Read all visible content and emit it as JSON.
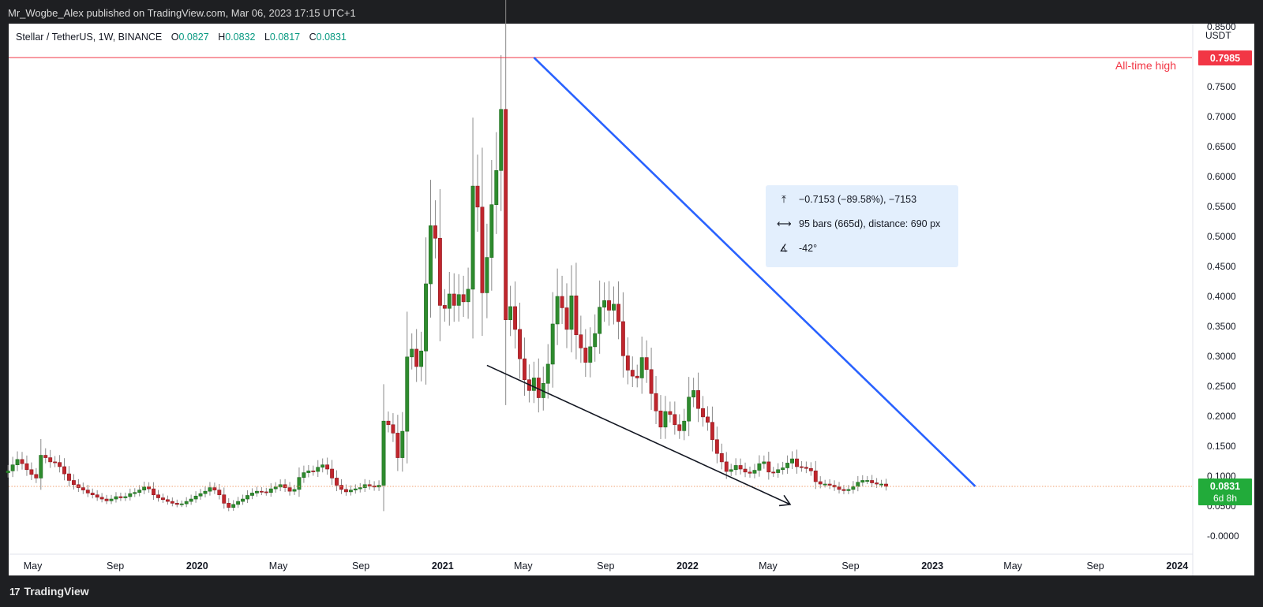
{
  "header": {
    "published_by": "Mr_Wogbe_Alex published on TradingView.com, Mar 06, 2023 17:15 UTC+1"
  },
  "footer": {
    "brand": "TradingView",
    "logo_icon": "tradingview-logo-icon"
  },
  "legend": {
    "symbol": "Stellar / TetherUS, 1W, BINANCE",
    "open_label": "O",
    "open": "0.0827",
    "high_label": "H",
    "high": "0.0832",
    "low_label": "L",
    "low": "0.0817",
    "close_label": "C",
    "close": "0.0831"
  },
  "price_axis": {
    "currency": "USDT",
    "last_price": "0.0831",
    "countdown": "6d 8h",
    "ath_value": "0.7985"
  },
  "annotations": {
    "ath_text": "All-time high",
    "measure_price": "−0.7153 (−89.58%), −7153",
    "measure_bars": "95 bars (665d), distance: 690 px",
    "measure_angle": "-42°"
  },
  "colors": {
    "up": "#2e8b2e",
    "down": "#c0262d",
    "ath_line": "#f23645",
    "trend_line": "#2962ff",
    "arrow": "#131722",
    "last_price_bg": "#22ab3a",
    "measure_bg": "#e3effd"
  },
  "chart_data": {
    "type": "candlestick",
    "title": "Stellar / TetherUS, 1W, BINANCE",
    "ylabel": "USDT",
    "ylim": [
      -0.03,
      0.855
    ],
    "y_ticks": [
      "0.8500",
      "0.7500",
      "0.7000",
      "0.6500",
      "0.6000",
      "0.5500",
      "0.5000",
      "0.4500",
      "0.4000",
      "0.3500",
      "0.3000",
      "0.2500",
      "0.2000",
      "0.1500",
      "0.1000",
      "0.0500",
      "-0.0000"
    ],
    "y_tick_values": [
      0.85,
      0.75,
      0.7,
      0.65,
      0.6,
      0.55,
      0.5,
      0.45,
      0.4,
      0.35,
      0.3,
      0.25,
      0.2,
      0.15,
      0.1,
      0.05,
      0.0
    ],
    "x_ticks": [
      {
        "label": "May",
        "date": "2019-05-01",
        "bold": false
      },
      {
        "label": "Sep",
        "date": "2019-09-01",
        "bold": false
      },
      {
        "label": "2020",
        "date": "2020-01-01",
        "bold": true
      },
      {
        "label": "May",
        "date": "2020-05-01",
        "bold": false
      },
      {
        "label": "Sep",
        "date": "2020-09-01",
        "bold": false
      },
      {
        "label": "2021",
        "date": "2021-01-01",
        "bold": true
      },
      {
        "label": "May",
        "date": "2021-05-01",
        "bold": false
      },
      {
        "label": "Sep",
        "date": "2021-09-01",
        "bold": false
      },
      {
        "label": "2022",
        "date": "2022-01-01",
        "bold": true
      },
      {
        "label": "May",
        "date": "2022-05-01",
        "bold": false
      },
      {
        "label": "Sep",
        "date": "2022-09-01",
        "bold": false
      },
      {
        "label": "2023",
        "date": "2023-01-01",
        "bold": true
      },
      {
        "label": "May",
        "date": "2023-05-01",
        "bold": false
      },
      {
        "label": "Sep",
        "date": "2023-09-01",
        "bold": false
      },
      {
        "label": "2024",
        "date": "2024-01-01",
        "bold": true
      }
    ],
    "x_range": [
      "2019-03-26",
      "2024-01-23"
    ],
    "series": [
      {
        "ohlc_weekly": {
          "start_week": "2019-03-25",
          "closes": [
            0.109,
            0.119,
            0.128,
            0.121,
            0.111,
            0.103,
            0.097,
            0.135,
            0.131,
            0.124,
            0.123,
            0.116,
            0.104,
            0.093,
            0.086,
            0.081,
            0.077,
            0.072,
            0.069,
            0.065,
            0.062,
            0.059,
            0.062,
            0.066,
            0.064,
            0.066,
            0.071,
            0.073,
            0.077,
            0.082,
            0.079,
            0.069,
            0.064,
            0.061,
            0.058,
            0.055,
            0.053,
            0.054,
            0.058,
            0.062,
            0.067,
            0.071,
            0.075,
            0.081,
            0.077,
            0.069,
            0.055,
            0.048,
            0.053,
            0.058,
            0.062,
            0.068,
            0.072,
            0.075,
            0.074,
            0.073,
            0.079,
            0.082,
            0.086,
            0.081,
            0.075,
            0.078,
            0.098,
            0.106,
            0.109,
            0.108,
            0.115,
            0.119,
            0.112,
            0.097,
            0.085,
            0.078,
            0.074,
            0.077,
            0.079,
            0.081,
            0.086,
            0.084,
            0.082,
            0.085,
            0.192,
            0.186,
            0.172,
            0.131,
            0.175,
            0.299,
            0.312,
            0.283,
            0.309,
            0.421,
            0.518,
            0.497,
            0.385,
            0.38,
            0.404,
            0.385,
            0.403,
            0.391,
            0.412,
            0.584,
            0.549,
            0.406,
            0.465,
            0.553,
            0.61,
            0.712,
            0.361,
            0.383,
            0.345,
            0.296,
            0.261,
            0.243,
            0.264,
            0.231,
            0.255,
            0.287,
            0.354,
            0.4,
            0.381,
            0.345,
            0.401,
            0.336,
            0.314,
            0.29,
            0.316,
            0.338,
            0.382,
            0.393,
            0.377,
            0.387,
            0.358,
            0.301,
            0.277,
            0.267,
            0.264,
            0.298,
            0.278,
            0.238,
            0.209,
            0.182,
            0.208,
            0.203,
            0.186,
            0.176,
            0.192,
            0.232,
            0.243,
            0.213,
            0.199,
            0.19,
            0.161,
            0.138,
            0.124,
            0.108,
            0.111,
            0.118,
            0.112,
            0.107,
            0.105,
            0.11,
            0.121,
            0.124,
            0.107,
            0.106,
            0.111,
            0.114,
            0.122,
            0.129,
            0.116,
            0.115,
            0.113,
            0.109,
            0.091,
            0.087,
            0.087,
            0.085,
            0.082,
            0.078,
            0.076,
            0.078,
            0.083,
            0.09,
            0.093,
            0.093,
            0.089,
            0.087,
            0.087,
            0.0831
          ]
        }
      }
    ],
    "all_time_high": 0.7985,
    "last_price": 0.0831,
    "trendline": {
      "from": {
        "date": "2021-05-17",
        "price": 0.7985
      },
      "to": {
        "date": "2023-03-06",
        "price": 0.0831
      }
    },
    "arrow_line": {
      "from": {
        "date": "2021-03-08",
        "price": 0.285
      },
      "to": {
        "date": "2022-06-03",
        "price": 0.053
      }
    }
  }
}
